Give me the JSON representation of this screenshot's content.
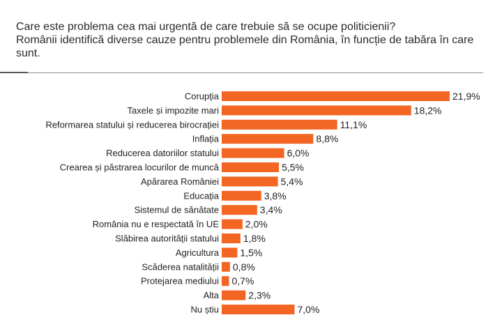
{
  "header": {
    "title_line1": "Care este problema cea mai urgentă de care trebuie să se ocupe politicienii?",
    "title_line2": "Românii identifică diverse cauze pentru problemele din România, în funcție de tabăra în care sunt."
  },
  "chart_data": {
    "type": "bar",
    "orientation": "horizontal",
    "title": "Care este problema cea mai urgentă de care trebuie să se ocupe politicienii?",
    "subtitle": "Românii identifică diverse cauze pentru problemele din România, în funcție de tabăra în care sunt.",
    "categories": [
      "Corupția",
      "Taxele și impozite mari",
      "Reformarea statului și reducerea birocrației",
      "Inflația",
      "Reducerea datoriilor statului",
      "Crearea și păstrarea locurilor de muncă",
      "Apărarea României",
      "Educația",
      "Sistemul de sănătate",
      "România nu e respectată în UE",
      "Slăbirea autorității statului",
      "Agricultura",
      "Scăderea natalității",
      "Protejarea mediului",
      "Alta",
      "Nu știu"
    ],
    "values": [
      21.9,
      18.2,
      11.1,
      8.8,
      6.0,
      5.5,
      5.4,
      3.8,
      3.4,
      2.0,
      1.8,
      1.5,
      0.8,
      0.7,
      2.3,
      7.0
    ],
    "value_labels": [
      "21,9%",
      "18,2%",
      "11,1%",
      "8,8%",
      "6,0%",
      "5,5%",
      "5,4%",
      "3,8%",
      "3,4%",
      "2,0%",
      "1,8%",
      "1,5%",
      "0,8%",
      "0,7%",
      "2,3%",
      "7,0%"
    ],
    "unit": "%",
    "bar_color": "#F26522",
    "xlim": [
      0,
      21.9
    ],
    "xlabel": "",
    "ylabel": "",
    "grid": false,
    "legend": "none"
  }
}
